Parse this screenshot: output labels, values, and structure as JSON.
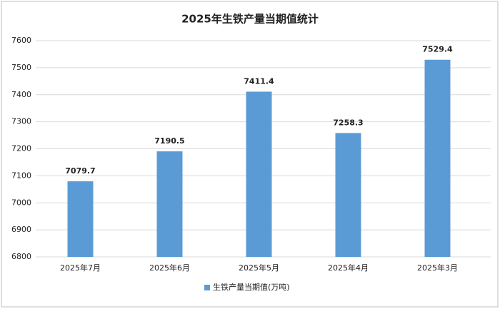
{
  "chart_data": {
    "type": "bar",
    "title": "2025年生铁产量当期值统计",
    "categories": [
      "2025年7月",
      "2025年6月",
      "2025年5月",
      "2025年4月",
      "2025年3月"
    ],
    "series": [
      {
        "name": "生铁产量当期值(万吨)",
        "color": "#5b9bd5",
        "values": [
          7079.7,
          7190.5,
          7411.4,
          7258.3,
          7529.4
        ]
      }
    ],
    "ylim": [
      6800,
      7600
    ],
    "yticks": [
      6800,
      6900,
      7000,
      7100,
      7200,
      7300,
      7400,
      7500,
      7600
    ],
    "grid": true,
    "legend": "bottom"
  }
}
